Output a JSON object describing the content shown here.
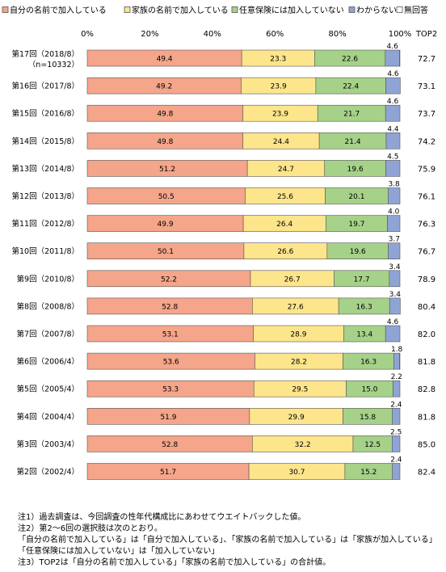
{
  "chart_data": {
    "type": "bar",
    "orientation": "horizontal",
    "stacked": true,
    "title": "",
    "xlabel": "",
    "ylabel": "",
    "xlim": [
      0,
      100
    ],
    "x_ticks": [
      "0%",
      "20%",
      "40%",
      "60%",
      "80%",
      "100%"
    ],
    "legend_position": "top",
    "grid": false,
    "categories": [
      "第17回（2018/8）",
      "第16回（2017/8）",
      "第15回（2016/8）",
      "第14回（2015/8）",
      "第13回（2014/8）",
      "第12回（2013/8）",
      "第11回（2012/8）",
      "第10回（2011/8）",
      "第9回（2010/8）",
      "第8回（2008/8）",
      "第7回（2007/8）",
      "第6回（2006/4）",
      "第5回（2005/4）",
      "第4回（2004/4）",
      "第3回（2003/4）",
      "第2回（2002/4）"
    ],
    "sub_labels": [
      "（n=10332）",
      "",
      "",
      "",
      "",
      "",
      "",
      "",
      "",
      "",
      "",
      "",
      "",
      "",
      "",
      ""
    ],
    "series": [
      {
        "name": "自分の名前で加入している",
        "color": "#f4a58a",
        "values": [
          49.4,
          49.2,
          49.8,
          49.8,
          51.2,
          50.5,
          49.9,
          50.1,
          52.2,
          52.8,
          53.1,
          53.6,
          53.3,
          51.9,
          52.8,
          51.7
        ]
      },
      {
        "name": "家族の名前で加入している",
        "color": "#fde58c",
        "values": [
          23.3,
          23.9,
          23.9,
          24.4,
          24.7,
          25.6,
          26.4,
          26.6,
          26.7,
          27.6,
          28.9,
          28.2,
          29.5,
          29.9,
          32.2,
          30.7
        ]
      },
      {
        "name": "任意保険には加入していない",
        "color": "#a6d189",
        "values": [
          22.6,
          22.4,
          21.7,
          21.4,
          19.6,
          20.1,
          19.7,
          19.6,
          17.7,
          16.3,
          13.4,
          16.3,
          15.0,
          15.8,
          12.5,
          15.2
        ]
      },
      {
        "name": "わからない",
        "color": "#8fa4d4",
        "values": [
          4.6,
          4.6,
          4.6,
          4.4,
          4.5,
          3.8,
          4.0,
          3.7,
          3.4,
          3.4,
          4.6,
          1.8,
          2.2,
          2.4,
          2.5,
          2.4
        ]
      },
      {
        "name": "無回答",
        "color": "#ffffff",
        "values": [
          0.1,
          0.0,
          0.0,
          0.0,
          0.0,
          0.0,
          0.0,
          0.0,
          0.0,
          0.0,
          0.0,
          0.1,
          0.0,
          0.0,
          0.0,
          0.0
        ]
      }
    ],
    "top2_header": "TOP2",
    "top2": [
      "72.7",
      "73.1",
      "73.7",
      "74.2",
      "75.9",
      "76.1",
      "76.3",
      "76.7",
      "78.9",
      "80.4",
      "82.0",
      "81.8",
      "82.8",
      "81.8",
      "85.0",
      "82.4"
    ]
  },
  "notes": [
    "注1）過去調査は、今回調査の性年代構成比にあわせてウエイトバックした値。",
    "注2）第2～6回の選択肢は次のとおり。",
    "「自分の名前で加入している」は「自分で加入している」、「家族の名前で加入している」は「家族が加入している」",
    "「任意保険には加入していない」は「加入していない」",
    "注3）TOP2は「自分の名前で加入している」「家族の名前で加入している」の合計値。"
  ]
}
